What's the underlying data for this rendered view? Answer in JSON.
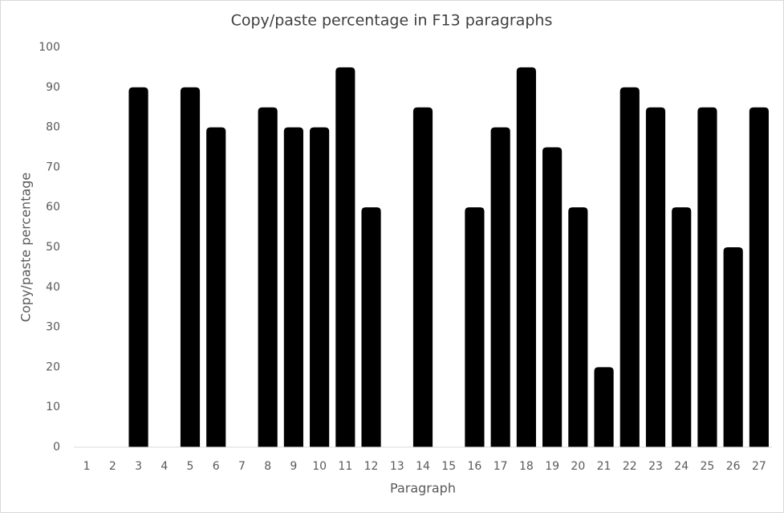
{
  "chart_data": {
    "type": "bar",
    "title": "Copy/paste percentage in F13 paragraphs",
    "x_label": "Paragraph",
    "y_label": "Copy/paste percentage",
    "categories": [
      "1",
      "2",
      "3",
      "4",
      "5",
      "6",
      "7",
      "8",
      "9",
      "10",
      "11",
      "12",
      "13",
      "14",
      "15",
      "16",
      "17",
      "18",
      "19",
      "20",
      "21",
      "22",
      "23",
      "24",
      "25",
      "26",
      "27"
    ],
    "values": [
      0,
      0,
      90,
      0,
      90,
      80,
      0,
      85,
      80,
      80,
      95,
      60,
      0,
      85,
      0,
      60,
      80,
      95,
      75,
      60,
      20,
      90,
      85,
      60,
      85,
      50,
      85
    ],
    "color": "#000000",
    "ylim": [
      0,
      100
    ],
    "yticks": [
      0,
      10,
      20,
      30,
      40,
      50,
      60,
      70,
      80,
      90,
      100
    ],
    "grid": false
  }
}
